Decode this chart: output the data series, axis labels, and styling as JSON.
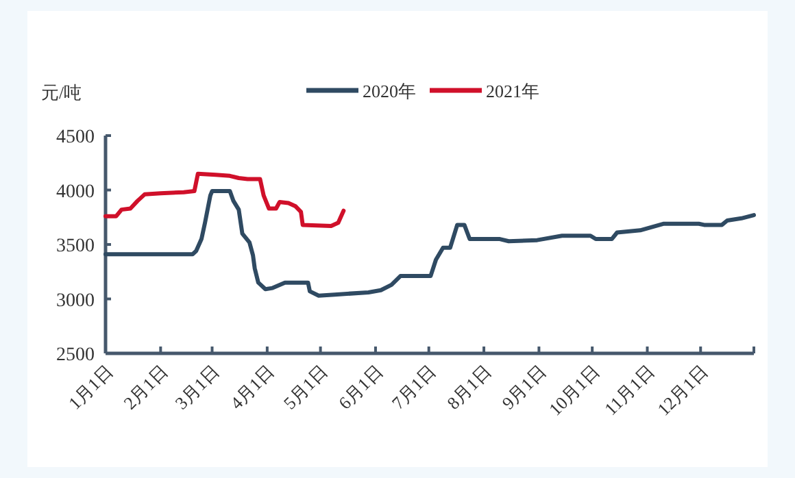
{
  "chart_data": {
    "type": "line",
    "ylabel": "元/吨",
    "legend": "top",
    "grid": false,
    "marker": "none",
    "line_style": "solid",
    "xlim": [
      "--01-01",
      "--12-31"
    ],
    "ylim": [
      2500,
      4500
    ],
    "yticks": [
      2500,
      3000,
      3500,
      4000,
      4500
    ],
    "xticks": [
      {
        "value": "--01-01",
        "label": "1月1日"
      },
      {
        "value": "--02-01",
        "label": "2月1日"
      },
      {
        "value": "--03-01",
        "label": "3月1日"
      },
      {
        "value": "--04-01",
        "label": "4月1日"
      },
      {
        "value": "--05-01",
        "label": "5月1日"
      },
      {
        "value": "--06-01",
        "label": "6月1日"
      },
      {
        "value": "--07-01",
        "label": "7月1日"
      },
      {
        "value": "--08-01",
        "label": "8月1日"
      },
      {
        "value": "--09-01",
        "label": "9月1日"
      },
      {
        "value": "--10-01",
        "label": "10月1日"
      },
      {
        "value": "--11-01",
        "label": "11月1日"
      },
      {
        "value": "--12-01",
        "label": "12月1日"
      },
      {
        "value": "--12-31",
        "label": null
      }
    ],
    "series": [
      {
        "name": "2020年",
        "color": "#2f4a62",
        "x": [
          "--01-01",
          "--02-19",
          "--02-21",
          "--02-24",
          "--02-26",
          "--02-29",
          "--03-01",
          "--03-11",
          "--03-13",
          "--03-16",
          "--03-18",
          "--03-22",
          "--03-24",
          "--03-25",
          "--03-27",
          "--03-31",
          "--04-04",
          "--04-11",
          "--04-24",
          "--04-25",
          "--04-30",
          "--05-09",
          "--05-28",
          "--06-04",
          "--06-10",
          "--06-15",
          "--07-02",
          "--07-05",
          "--07-09",
          "--07-13",
          "--07-17",
          "--07-21",
          "--07-24",
          "--08-10",
          "--08-15",
          "--08-31",
          "--09-14",
          "--09-30",
          "--10-03",
          "--10-12",
          "--10-15",
          "--10-28",
          "--11-10",
          "--11-30",
          "--12-03",
          "--12-13",
          "--12-16",
          "--12-24",
          "--12-31"
        ],
        "values": [
          3410,
          3410,
          3440,
          3550,
          3700,
          3950,
          3990,
          3990,
          3900,
          3820,
          3600,
          3520,
          3400,
          3280,
          3150,
          3090,
          3100,
          3150,
          3150,
          3070,
          3030,
          3040,
          3060,
          3080,
          3130,
          3210,
          3210,
          3360,
          3470,
          3470,
          3680,
          3680,
          3550,
          3550,
          3530,
          3540,
          3580,
          3580,
          3550,
          3550,
          3610,
          3630,
          3690,
          3690,
          3680,
          3680,
          3720,
          3740,
          3770
        ]
      },
      {
        "name": "2021年",
        "color": "#d0102a",
        "x": [
          "--01-01",
          "--01-07",
          "--01-10",
          "--01-15",
          "--01-19",
          "--01-23",
          "--02-01",
          "--02-14",
          "--02-20",
          "--02-22",
          "--03-03",
          "--03-11",
          "--03-16",
          "--03-21",
          "--03-28",
          "--03-30",
          "--04-02",
          "--04-06",
          "--04-08",
          "--04-13",
          "--04-17",
          "--04-20",
          "--04-21",
          "--05-07",
          "--05-11",
          "--05-14"
        ],
        "values": [
          3760,
          3760,
          3820,
          3830,
          3900,
          3960,
          3970,
          3980,
          3990,
          4150,
          4140,
          4130,
          4110,
          4100,
          4100,
          3950,
          3830,
          3830,
          3890,
          3880,
          3850,
          3800,
          3680,
          3670,
          3700,
          3810
        ]
      }
    ]
  }
}
